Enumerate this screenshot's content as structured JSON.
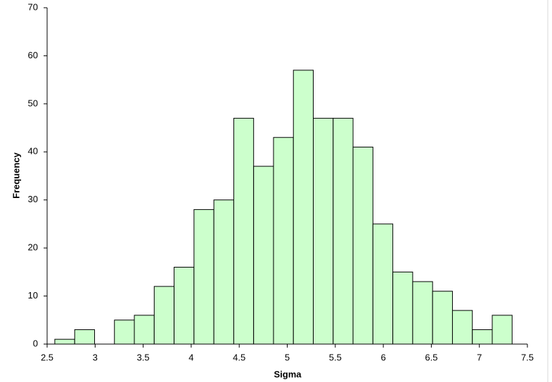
{
  "chart_data": {
    "type": "histogram",
    "xlabel": "Sigma",
    "ylabel": "Frequency",
    "bins": [
      2.58,
      2.787,
      2.994,
      3.201,
      3.408,
      3.615,
      3.822,
      4.029,
      4.236,
      4.443,
      4.65,
      4.857,
      5.064,
      5.271,
      5.478,
      5.685,
      5.892,
      6.099,
      6.306,
      6.513,
      6.72,
      6.927,
      7.134,
      7.341
    ],
    "counts": [
      1,
      3,
      0,
      5,
      6,
      12,
      16,
      28,
      30,
      47,
      37,
      43,
      57,
      47,
      47,
      41,
      25,
      15,
      13,
      11,
      7,
      3,
      6
    ],
    "color": "#ccffcc",
    "edgecolor": "#000000",
    "xlim": [
      2.5,
      7.5
    ],
    "xticks": [
      2.5,
      3,
      3.5,
      4,
      4.5,
      5,
      5.5,
      6,
      6.5,
      7,
      7.5
    ],
    "ylim": [
      0,
      70
    ],
    "yticks": [
      0,
      10,
      20,
      30,
      40,
      50,
      60,
      70
    ],
    "grid": false
  }
}
